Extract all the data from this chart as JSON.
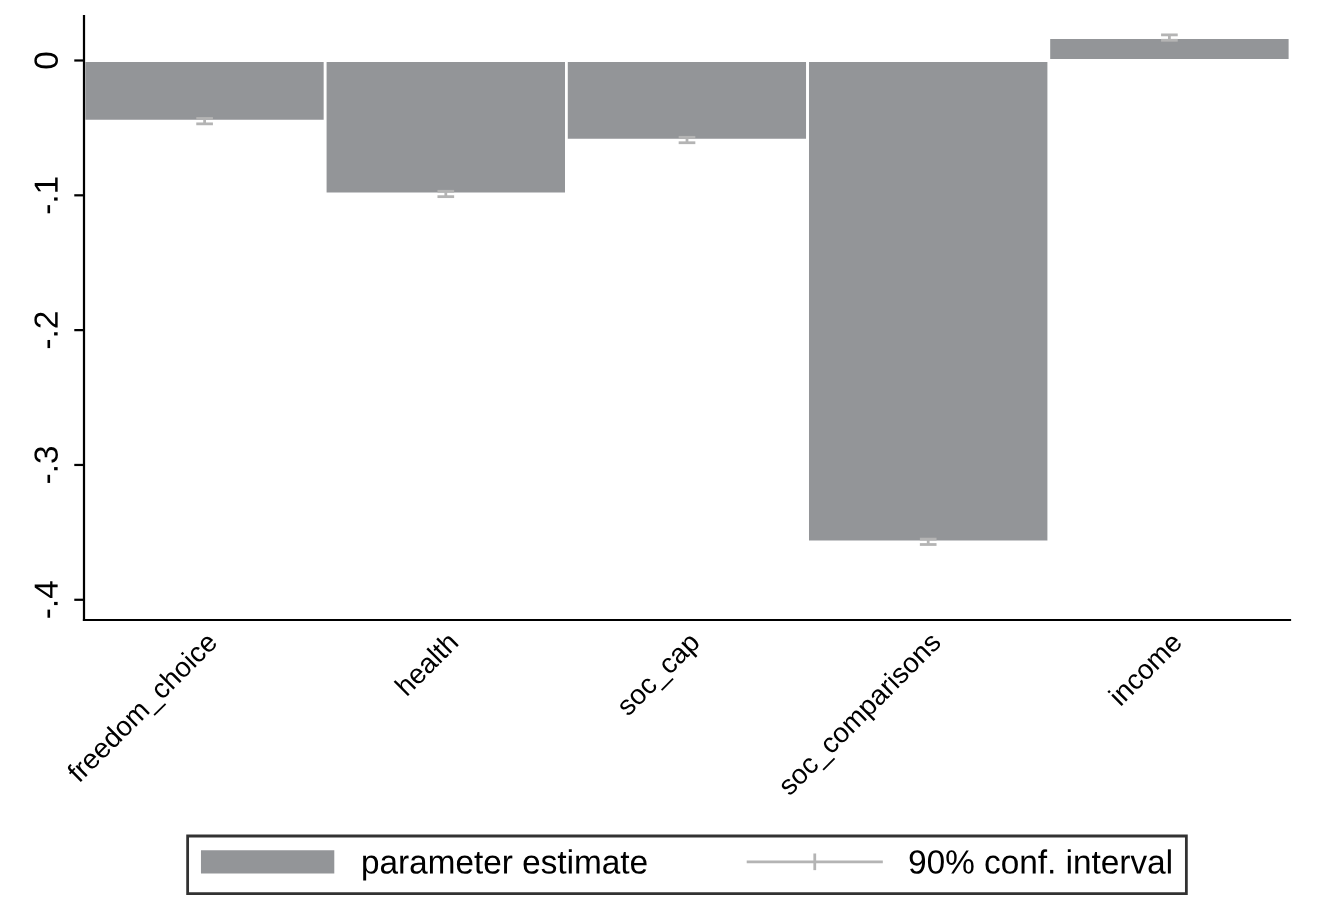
{
  "chart_data": {
    "type": "bar",
    "categories": [
      "freedom_choice",
      "health",
      "soc_cap",
      "soc_comparisons",
      "income"
    ],
    "series": [
      {
        "name": "parameter estimate",
        "color": "#939598",
        "values": [
          -0.045,
          -0.099,
          -0.059,
          -0.357,
          0.017
        ],
        "errors": [
          0.002,
          0.002,
          0.002,
          0.002,
          0.002
        ]
      }
    ],
    "ylim": [
      -0.415,
      0.033
    ],
    "yticks": [
      {
        "value": 0,
        "label": "0"
      },
      {
        "value": -0.1,
        "label": "-.1"
      },
      {
        "value": -0.2,
        "label": "-.2"
      },
      {
        "value": -0.3,
        "label": "-.3"
      },
      {
        "value": -0.4,
        "label": "-.4"
      }
    ],
    "legend": "bottom",
    "grid": false,
    "annotations": [
      "90% conf. interval"
    ]
  }
}
